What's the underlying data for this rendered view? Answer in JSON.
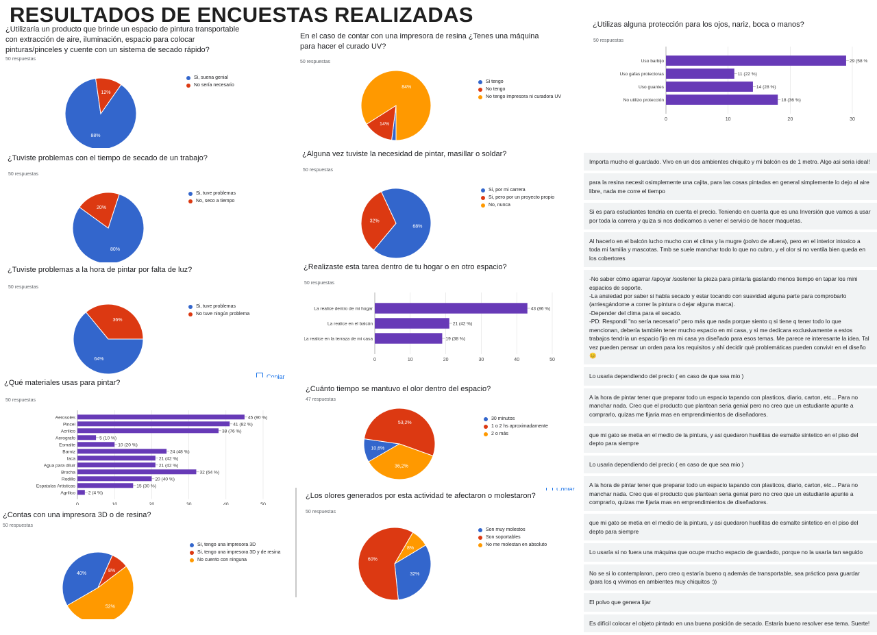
{
  "page": {
    "title": "RESULTADOS DE ENCUESTAS REALIZADAS",
    "copy_label": "Copiar"
  },
  "colors": {
    "blue": "#3366cc",
    "red": "#dc3912",
    "orange": "#ff9900",
    "purple": "#673ab7"
  },
  "chart_data": [
    {
      "id": "c1",
      "type": "pie",
      "title": "¿Utilizaría un producto que brinde un espacio de pintura transportable con extracción de aire, iluminación, espacio para colocar pinturas/pinceles y cuente con un sistema de secado rápido?",
      "responses": "50 respuestas",
      "categories": [
        "Si, suena genial",
        "No sería necesario"
      ],
      "values": [
        88,
        12
      ],
      "labels": [
        "88%",
        "12%"
      ]
    },
    {
      "id": "c2",
      "type": "pie",
      "title": "En el caso de contar con una impresora de resina ¿Tenes una máquina para hacer el curado UV?",
      "responses": "50 respuestas",
      "categories": [
        "Si tengo",
        "No tengo",
        "No tengo impresora ni curadora UV"
      ],
      "values": [
        2,
        14,
        84
      ],
      "labels": [
        "",
        "14%",
        "84%"
      ]
    },
    {
      "id": "c3",
      "type": "bar",
      "title": "¿Utilizas alguna protección para los ojos, nariz, boca o manos?",
      "responses": "50 respuestas",
      "categories": [
        "Uso barbijo",
        "Uso gafas protectoras",
        "Uso guantes",
        "No utilizo protección"
      ],
      "values": [
        29,
        11,
        14,
        18
      ],
      "labels": [
        "29 (58 %)",
        "11 (22 %)",
        "14 (28 %)",
        "18 (36 %)"
      ],
      "ticks": [
        "0",
        "10",
        "20",
        "30"
      ],
      "xlim": [
        0,
        30
      ]
    },
    {
      "id": "c4",
      "type": "pie",
      "title": "¿Tuviste problemas con el tiempo de secado de un trabajo?",
      "responses": "50 respuestas",
      "categories": [
        "Si, tuve problemas",
        "No, seco a tiempo"
      ],
      "values": [
        80,
        20
      ],
      "labels": [
        "80%",
        "20%"
      ]
    },
    {
      "id": "c5",
      "type": "pie",
      "title": "¿Alguna vez tuviste la necesidad de pintar, masillar o soldar?",
      "responses": "50 respuestas",
      "categories": [
        "Si, por mi carrera",
        "Si, pero por un proyecto propio",
        "No, nunca"
      ],
      "values": [
        68,
        32,
        0
      ],
      "labels": [
        "68%",
        "32%",
        ""
      ]
    },
    {
      "id": "c6",
      "type": "pie",
      "title": "¿Tuviste problemas a la hora de pintar por falta de luz?",
      "responses": "50 respuestas",
      "categories": [
        "Si, tuve problemas",
        "No tuve ningún problema"
      ],
      "values": [
        64,
        36
      ],
      "labels": [
        "64%",
        "36%"
      ]
    },
    {
      "id": "c7",
      "type": "bar",
      "title": "¿Realizaste esta tarea dentro de tu hogar o en otro espacio?",
      "responses": "50 respuestas",
      "categories": [
        "La realice dentro de mi hogar",
        "La realice en el balcón",
        "La realice en la terraza de mi casa"
      ],
      "values": [
        43,
        21,
        19
      ],
      "labels": [
        "43 (86 %)",
        "21 (42 %)",
        "19 (38 %)"
      ],
      "ticks": [
        "0",
        "10",
        "20",
        "30",
        "40",
        "50"
      ],
      "xlim": [
        0,
        50
      ]
    },
    {
      "id": "c8",
      "type": "bar",
      "title": "¿Qué materiales usas para pintar?",
      "responses": "50 respuestas",
      "categories": [
        "Aerosoles",
        "Pincel",
        "Acrilico",
        "Aerografo",
        "Esmalte",
        "Barniz",
        "laca",
        "Agua para diluir",
        "Brocha",
        "Rodillo",
        "Espatulas Artisticas",
        "Agrilico"
      ],
      "values": [
        45,
        41,
        38,
        5,
        10,
        24,
        21,
        21,
        32,
        20,
        15,
        2
      ],
      "labels": [
        "45 (90 %)",
        "41 (82 %)",
        "38 (76 %)",
        "5 (10 %)",
        "10 (20 %)",
        "24 (48 %)",
        "21 (42 %)",
        "21 (42 %)",
        "32 (64 %)",
        "20 (40 %)",
        "15 (30 %)",
        "2 (4 %)"
      ],
      "ticks": [
        "0",
        "10",
        "20",
        "30",
        "40",
        "50"
      ],
      "xlim": [
        0,
        50
      ]
    },
    {
      "id": "c9",
      "type": "pie",
      "title": "¿Cuánto tiempo se mantuvo el olor dentro del espacio?",
      "responses": "47 respuestas",
      "categories": [
        "30 minutos",
        "1 o 2 hs aproximadamente",
        "2 o más"
      ],
      "values": [
        10.6,
        53.2,
        36.2
      ],
      "labels": [
        "10,6%",
        "53,2%",
        "36,2%"
      ]
    },
    {
      "id": "c10",
      "type": "pie",
      "title": "¿Contas con una impresora 3D o de resina?",
      "responses": "50 respuestas",
      "categories": [
        "Si, tengo una impresora 3D",
        "Si, tengo una impresora 3D y de resina",
        "No cuento con ninguna"
      ],
      "values": [
        40,
        8,
        52
      ],
      "labels": [
        "40%",
        "8%",
        "52%"
      ]
    },
    {
      "id": "c11",
      "type": "pie",
      "title": "¿Los olores generados por esta actividad te afectaron o molestaron?",
      "responses": "50 respuestas",
      "categories": [
        "Son muy molestos",
        "Son soportables",
        "No me molestan en absoluto"
      ],
      "values": [
        32,
        60,
        8
      ],
      "labels": [
        "32%",
        "60%",
        "8%"
      ]
    }
  ],
  "comments": [
    "Importa mucho el guardado. Vivo en un dos ambientes chiquito y mi balcón es de 1 metro. Algo asi seria ideal!",
    "para la resina necesit osimplemente una cajita, para las cosas pintadas en general simplemente lo dejo al aire libre, nada me corre el tiempo",
    "Si es para estudiantes tendria en cuenta el precio. Teniendo en cuenta que es una Inversión que vamos a usar por toda la carrera y quiza si nos dedicamos a vener el servicio de hacer maquetas.",
    "Al hacerlo en el balcón lucho mucho con el clima y la mugre (polvo de afuera), pero en el interior intoxico a toda mi familia y mascotas. Tmb se suele manchar todo lo que no cubro, y el olor si no ventila bien queda en los cobertores",
    "-No saber cómo agarrar /apoyar /sostener la pieza para pintarla gastando menos tiempo en tapar los mini espacios de soporte.\n-La ansiedad por saber si había secado y estar tocando con suavidad alguna parte para comprobarlo (arriesgándome a correr la pintura o dejar alguna marca).\n-Depender del clima para el secado.\n-PD: Respondí \"no sería necesario\" pero más que nada porque siento q si tiene q tener todo lo que mencionan, debería también tener mucho espacio en mi casa, y si me dedicara exclusivamente a estos trabajos tendría un espacio fijo en mi casa ya diseñado para esos temas. Me parece re interesante la idea. Tal vez pueden pensar un orden para los requisitos y ahí decidir qué problemáticas pueden convivir en el diseño😊",
    "Lo usaria dependiendo del precio ( en caso de que sea mio )",
    "A la hora de pintar tener que preparar todo un espacio tapando con plasticos, diario, carton, etc... Para no manchar nada. Creo que el producto que plantean seria genial pero no creo que un estudiante apunte a comprarlo, quizas me fijaria mas en emprendimientos de diseñadores.",
    "que mi gato se metia en el medio de la pintura, y asi quedaron huellitas de esmalte sintetico en el piso del depto para siempre",
    "Lo usaria dependiendo del precio ( en caso de que sea mio )",
    "A la hora de pintar tener que preparar todo un espacio tapando con plasticos, diario, carton, etc... Para no manchar nada. Creo que el producto que plantean seria genial pero no creo que un estudiante apunte a comprarlo, quizas me fijaria mas en emprendimientos de diseñadores.",
    "que mi gato se metia en el medio de la pintura, y asi quedaron huellitas de esmalte sintetico en el piso del depto para siempre",
    "Lo usaría si no fuera una máquina que ocupe mucho espacio de guardado, porque no la usaría tan seguido",
    "No se si lo contemplaron, pero creo q estaría bueno q además de transportable, sea práctico para guardar (para los q vivimos en ambientes muy chiquitos :))",
    "El polvo que genera lijar",
    "Es difícil colocar el objeto pintado en una buena posición de secado. Estaría bueno resolver ese tema. Suerte!"
  ]
}
